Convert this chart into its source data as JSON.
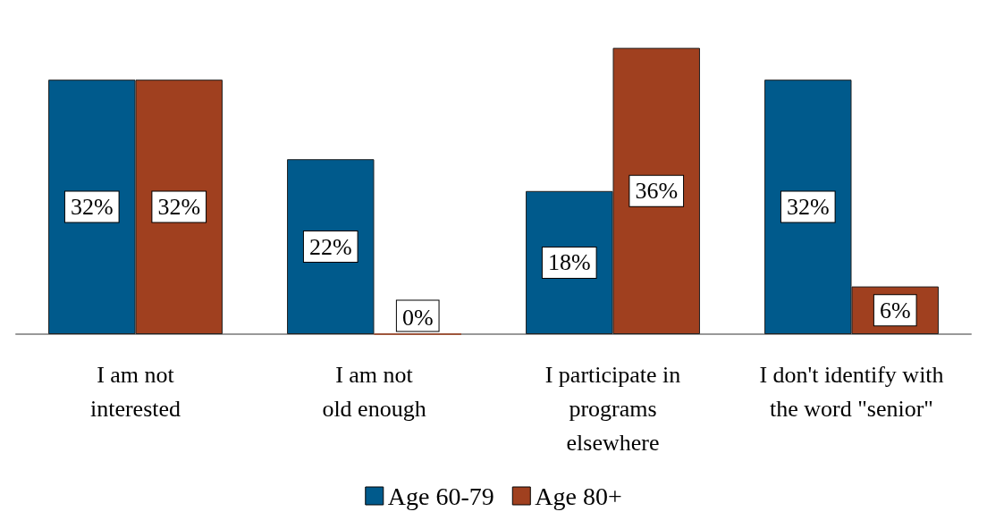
{
  "chart_data": {
    "type": "bar",
    "categories": [
      "I am not\ninterested",
      "I am not\nold enough",
      "I participate in\nprograms\nelsewhere",
      "I don't identify with\nthe word \"senior\""
    ],
    "series": [
      {
        "name": "Age 60-79",
        "color": "#005a8c",
        "values": [
          32,
          22,
          18,
          32
        ],
        "value_labels": [
          "32%",
          "22%",
          "18%",
          "32%"
        ]
      },
      {
        "name": "Age 80+",
        "color": "#a0401f",
        "values": [
          32,
          0,
          36,
          6
        ],
        "value_labels": [
          "32%",
          "0%",
          "36%",
          "6%"
        ]
      }
    ],
    "legend": "bottom"
  }
}
